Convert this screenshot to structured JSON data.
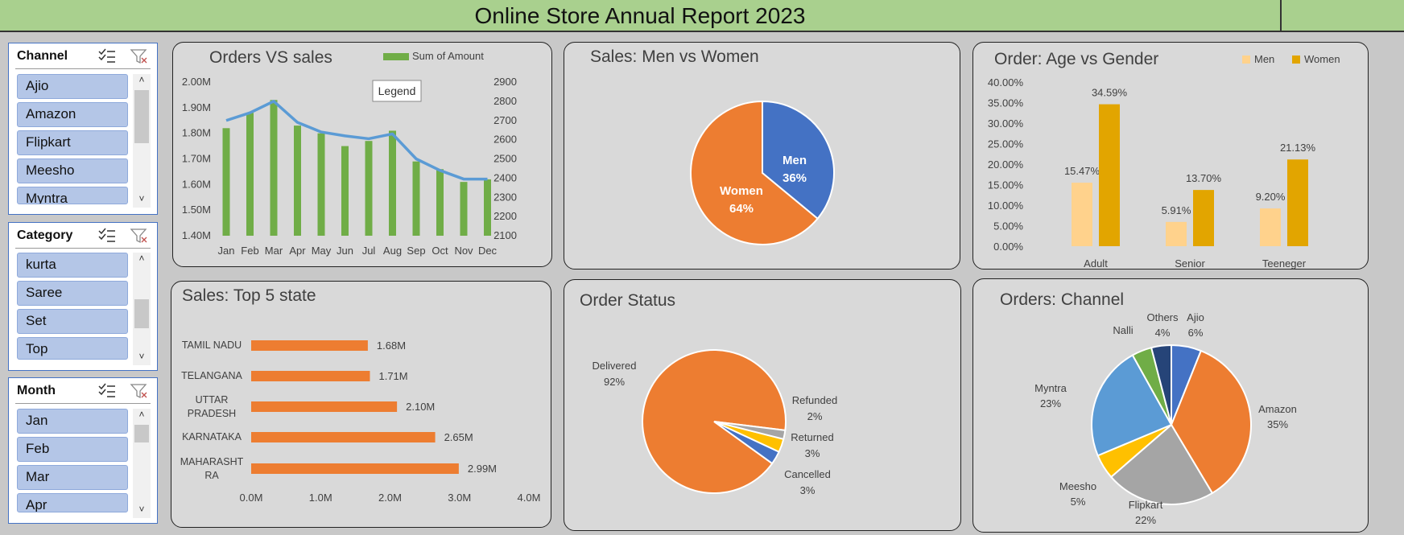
{
  "report_title": "Online Store Annual Report 2023",
  "slicers": [
    {
      "title": "Channel",
      "items": [
        "Ajio",
        "Amazon",
        "Flipkart",
        "Meesho",
        "Myntra"
      ]
    },
    {
      "title": "Category",
      "items": [
        "kurta",
        "Saree",
        "Set",
        "Top"
      ]
    },
    {
      "title": "Month",
      "items": [
        "Jan",
        "Feb",
        "Mar",
        "Apr"
      ]
    }
  ],
  "legend_tooltip": "Legend",
  "chart_data": [
    {
      "id": "orders-vs-sales",
      "type": "bar",
      "title": "Orders VS sales",
      "legend": [
        "Sum of Amount"
      ],
      "categories": [
        "Jan",
        "Feb",
        "Mar",
        "Apr",
        "May",
        "Jun",
        "Jul",
        "Aug",
        "Sep",
        "Oct",
        "Nov",
        "Dec"
      ],
      "series": [
        {
          "name": "Sum of Amount",
          "type": "bar",
          "axis": "left",
          "values": [
            1.82,
            1.88,
            1.93,
            1.83,
            1.8,
            1.75,
            1.77,
            1.81,
            1.69,
            1.66,
            1.61,
            1.62
          ],
          "color": "#70ad47"
        },
        {
          "type": "line",
          "axis": "right",
          "values": [
            2700,
            2740,
            2800,
            2690,
            2640,
            2620,
            2605,
            2630,
            2500,
            2440,
            2395,
            2395
          ],
          "color": "#5b9bd5"
        }
      ],
      "ylim_left": [
        1.4,
        2.0
      ],
      "yticks_left": [
        "2.00M",
        "1.90M",
        "1.80M",
        "1.70M",
        "1.60M",
        "1.50M",
        "1.40M"
      ],
      "ylim_right": [
        2100,
        2900
      ],
      "yticks_right": [
        "2900",
        "2800",
        "2700",
        "2600",
        "2500",
        "2400",
        "2300",
        "2200",
        "2100"
      ]
    },
    {
      "id": "sales-men-women",
      "type": "pie",
      "title": "Sales: Men vs Women",
      "labels": [
        "Men",
        "Women"
      ],
      "values": [
        36,
        64
      ],
      "value_labels": [
        "36%",
        "64%"
      ],
      "colors": [
        "#4472c4",
        "#ed7d31"
      ]
    },
    {
      "id": "order-age-gender",
      "type": "bar",
      "title": "Order: Age vs Gender",
      "categories": [
        "Adult",
        "Senior",
        "Teeneger"
      ],
      "series": [
        {
          "name": "Men",
          "values": [
            15.47,
            5.91,
            9.2
          ],
          "labels": [
            "15.47%",
            "5.91%",
            "9.20%"
          ],
          "color": "#ffd28c"
        },
        {
          "name": "Women",
          "values": [
            34.59,
            13.7,
            21.13
          ],
          "labels": [
            "34.59%",
            "13.70%",
            "21.13%"
          ],
          "color": "#e2a500"
        }
      ],
      "ylim": [
        0,
        40
      ],
      "yticks": [
        "40.00%",
        "35.00%",
        "30.00%",
        "25.00%",
        "20.00%",
        "15.00%",
        "10.00%",
        "5.00%",
        "0.00%"
      ],
      "legend_position": "top-right"
    },
    {
      "id": "sales-top5-state",
      "type": "bar",
      "orientation": "horizontal",
      "title": "Sales: Top 5 state",
      "categories": [
        [
          "TAMIL NADU"
        ],
        [
          "TELANGANA"
        ],
        [
          "UTTAR",
          "PRADESH"
        ],
        [
          "KARNATAKA"
        ],
        [
          "MAHARASHT",
          "RA"
        ]
      ],
      "values": [
        1.68,
        1.71,
        2.1,
        2.65,
        2.99
      ],
      "value_labels": [
        "1.68M",
        "1.71M",
        "2.10M",
        "2.65M",
        "2.99M"
      ],
      "xlim": [
        0,
        4
      ],
      "xticks": [
        "0.0M",
        "1.0M",
        "2.0M",
        "3.0M",
        "4.0M"
      ],
      "color": "#ed7d31"
    },
    {
      "id": "order-status",
      "type": "pie",
      "title": "Order Status",
      "labels": [
        "Delivered",
        "Cancelled",
        "Returned",
        "Refunded"
      ],
      "values": [
        92,
        3,
        3,
        2
      ],
      "value_labels": [
        "92%",
        "3%",
        "3%",
        "2%"
      ],
      "colors": [
        "#ed7d31",
        "#4472c4",
        "#ffc000",
        "#a5a5a5"
      ]
    },
    {
      "id": "orders-channel",
      "type": "pie",
      "title": "Orders: Channel",
      "labels": [
        "Ajio",
        "Amazon",
        "Flipkart",
        "Meesho",
        "Myntra",
        "Nalli",
        "Others"
      ],
      "values": [
        6,
        35,
        22,
        5,
        23,
        4,
        4
      ],
      "value_labels": [
        "6%",
        "35%",
        "22%",
        "5%",
        "23%",
        "",
        "4%"
      ],
      "colors": [
        "#4472c4",
        "#ed7d31",
        "#a5a5a5",
        "#ffc000",
        "#5b9bd5",
        "#70ad47",
        "#264478"
      ]
    }
  ]
}
